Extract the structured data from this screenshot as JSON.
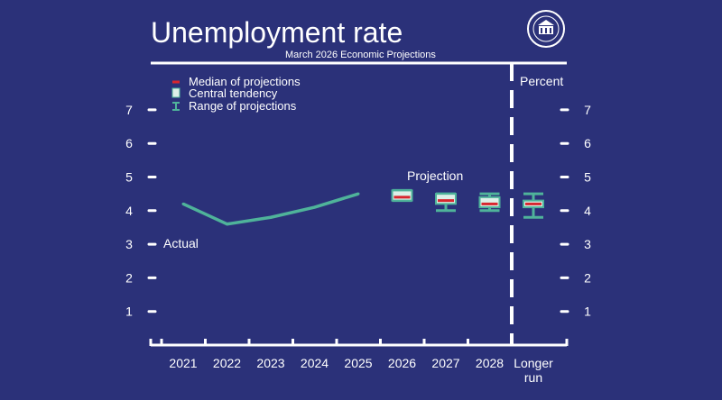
{
  "chart_data": {
    "type": "line",
    "title": "Unemployment rate",
    "subtitle": "March 2026 Economic Projections",
    "unit_label": "Percent",
    "ylim": [
      0,
      7.8
    ],
    "y_ticks": [
      1,
      2,
      3,
      4,
      5,
      6,
      7
    ],
    "categories": [
      "2021",
      "2022",
      "2023",
      "2024",
      "2025",
      "2026",
      "2027",
      "2028",
      "Longer run"
    ],
    "actual": {
      "label": "Actual",
      "x": [
        2021,
        2022,
        2023,
        2024,
        2025
      ],
      "values": [
        4.2,
        3.6,
        3.8,
        4.1,
        4.5
      ]
    },
    "projection_label": "Projection",
    "projections": [
      {
        "period": "2026",
        "median": 4.4,
        "central_low": 4.3,
        "central_high": 4.6,
        "range_low": 4.3,
        "range_high": 4.6
      },
      {
        "period": "2027",
        "median": 4.3,
        "central_low": 4.2,
        "central_high": 4.5,
        "range_low": 4.0,
        "range_high": 4.5
      },
      {
        "period": "2028",
        "median": 4.2,
        "central_low": 4.1,
        "central_high": 4.4,
        "range_low": 4.0,
        "range_high": 4.5
      },
      {
        "period": "Longer run",
        "median": 4.2,
        "central_low": 4.1,
        "central_high": 4.3,
        "range_low": 3.8,
        "range_high": 4.5
      }
    ],
    "legend": [
      {
        "key": "median",
        "label": "Median of projections"
      },
      {
        "key": "central",
        "label": "Central tendency"
      },
      {
        "key": "range",
        "label": "Range of projections"
      }
    ],
    "legend_position": "top-left",
    "colors": {
      "background": "#2b3179",
      "axis": "#ffffff",
      "actual_line": "#4fb39a",
      "central_fill": "#ddf0e8",
      "median": "#d8262e",
      "range": "#4fb39a"
    }
  },
  "seal_text": "BOARD OF GOVERNORS OF THE FEDERAL RESERVE SYSTEM"
}
